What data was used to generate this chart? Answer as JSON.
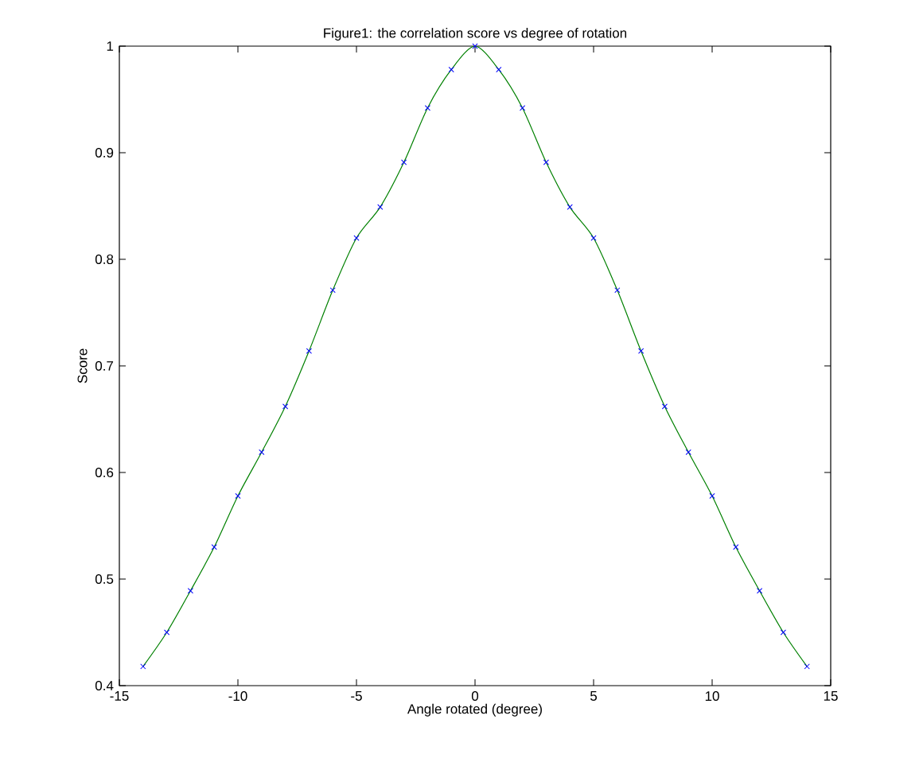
{
  "chart_data": {
    "type": "line",
    "title": "Figure1: the correlation score vs degree of rotation",
    "xlabel": "Angle rotated (degree)",
    "ylabel": "Score",
    "x": [
      -14,
      -13,
      -12,
      -11,
      -10,
      -9,
      -8,
      -7,
      -6,
      -5,
      -4,
      -3,
      -2,
      -1,
      0,
      1,
      2,
      3,
      4,
      5,
      6,
      7,
      8,
      9,
      10,
      11,
      12,
      13,
      14
    ],
    "series": [
      {
        "color": "#008000",
        "marker": "none",
        "line_style": "solid",
        "values": [
          0.418,
          0.45,
          0.489,
          0.53,
          0.578,
          0.619,
          0.662,
          0.714,
          0.771,
          0.82,
          0.849,
          0.891,
          0.942,
          0.978,
          1.0,
          0.978,
          0.942,
          0.891,
          0.849,
          0.82,
          0.771,
          0.714,
          0.662,
          0.619,
          0.578,
          0.53,
          0.489,
          0.45,
          0.418
        ]
      },
      {
        "type": "scatter",
        "color": "#0000ff",
        "marker": "cross",
        "values": [
          0.418,
          0.45,
          0.489,
          0.53,
          0.578,
          0.619,
          0.662,
          0.714,
          0.771,
          0.82,
          0.849,
          0.891,
          0.942,
          0.978,
          1.0,
          0.978,
          0.942,
          0.891,
          0.849,
          0.82,
          0.771,
          0.714,
          0.662,
          0.619,
          0.578,
          0.53,
          0.489,
          0.45,
          0.418
        ]
      }
    ],
    "xlim": [
      -15,
      15
    ],
    "xticks": [
      -15,
      -10,
      -5,
      0,
      5,
      10,
      15
    ],
    "ylim": [
      0.4,
      1
    ],
    "yticks": [
      0.4,
      0.5,
      0.6,
      0.7,
      0.8,
      0.9,
      1
    ],
    "grid": false
  }
}
